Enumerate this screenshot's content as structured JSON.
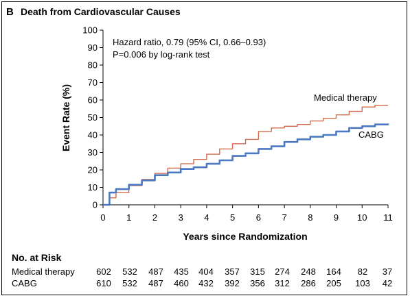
{
  "chart_data": {
    "type": "line",
    "panel_label": "B",
    "title": "Death from Cardiovascular Causes",
    "xlabel": "Years since Randomization",
    "ylabel": "Event Rate (%)",
    "xlim": [
      0,
      11
    ],
    "ylim": [
      0,
      100
    ],
    "xticks": [
      0,
      1,
      2,
      3,
      4,
      5,
      6,
      7,
      8,
      9,
      10,
      11
    ],
    "yticks": [
      0,
      10,
      20,
      30,
      40,
      50,
      60,
      70,
      80,
      90,
      100
    ],
    "grid": false,
    "annotations": [
      "Hazard ratio, 0.79 (95% CI, 0.66–0.93)",
      "P=0.006 by log-rank test"
    ],
    "series": [
      {
        "name": "Medical therapy",
        "color": "#d2694a",
        "x": [
          0,
          0.25,
          0.5,
          1,
          1.5,
          2,
          2.5,
          3,
          3.5,
          4,
          4.5,
          5,
          5.5,
          6,
          6.5,
          7,
          7.5,
          8,
          8.5,
          9,
          9.5,
          10,
          10.5,
          11
        ],
        "y": [
          0,
          4,
          7,
          11,
          14.5,
          18,
          21,
          23.5,
          26,
          29,
          32,
          35,
          37.5,
          42,
          44,
          45,
          46,
          48,
          49.5,
          51.5,
          53.5,
          56,
          57,
          57
        ]
      },
      {
        "name": "CABG",
        "color": "#4a78c2",
        "x": [
          0,
          0.25,
          0.5,
          1,
          1.5,
          2,
          2.5,
          3,
          3.5,
          4,
          4.5,
          5,
          5.5,
          6,
          6.5,
          7,
          7.5,
          8,
          8.5,
          9,
          9.5,
          10,
          10.5,
          11
        ],
        "y": [
          0,
          7,
          9,
          11.5,
          14,
          17,
          18.5,
          20.5,
          21.5,
          23.5,
          25.5,
          28,
          29.5,
          32,
          33.5,
          36,
          37.5,
          39,
          40,
          42,
          44,
          45,
          46,
          46.5
        ]
      }
    ]
  },
  "risk_table": {
    "header": "No. at Risk",
    "rows": [
      {
        "label": "Medical therapy",
        "values": [
          "602",
          "532",
          "487",
          "435",
          "404",
          "357",
          "315",
          "274",
          "248",
          "164",
          "82",
          "37"
        ]
      },
      {
        "label": "CABG",
        "values": [
          "610",
          "532",
          "487",
          "460",
          "432",
          "392",
          "356",
          "312",
          "286",
          "205",
          "103",
          "42"
        ]
      }
    ]
  }
}
